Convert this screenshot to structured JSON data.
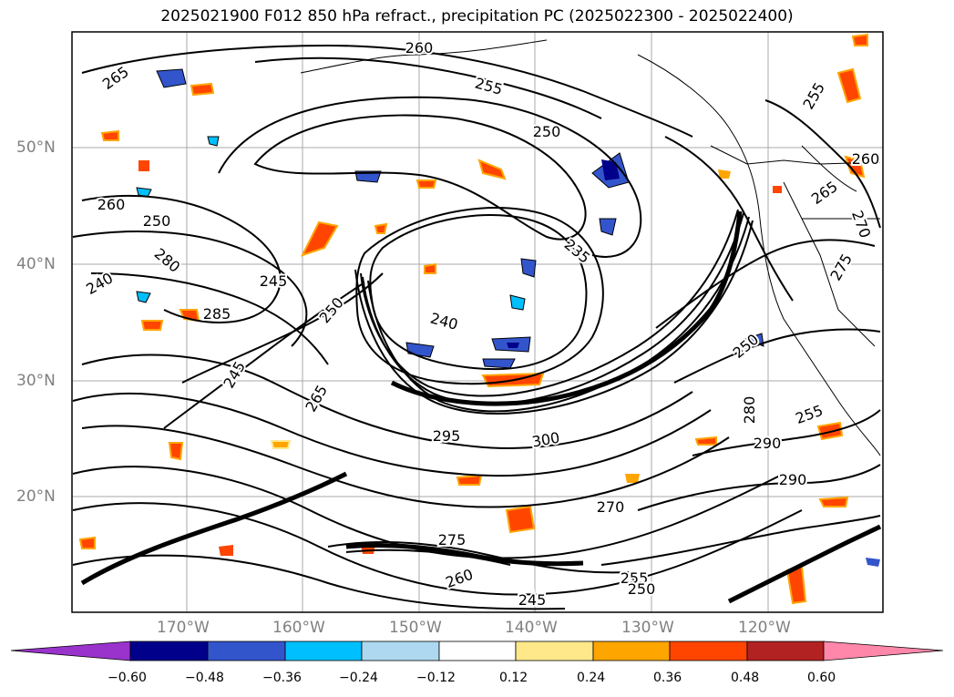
{
  "title": "2025021900 F012 850 hPa refract., precipitation PC (2025022300 - 2025022400)",
  "map": {
    "region": "North-east Pacific Ocean and western North America",
    "lat_labels": [
      "50°N",
      "40°N",
      "30°N",
      "20°N"
    ],
    "lon_labels": [
      "170°W",
      "160°W",
      "150°W",
      "140°W",
      "130°W",
      "120°W"
    ],
    "contour_labels": [
      "265",
      "260",
      "255",
      "250",
      "255",
      "260",
      "265",
      "270",
      "275",
      "260",
      "250",
      "280",
      "240",
      "245",
      "285",
      "250",
      "240",
      "235",
      "245",
      "265",
      "250",
      "280",
      "290",
      "255",
      "290",
      "295",
      "300",
      "270",
      "275",
      "260",
      "255",
      "245",
      "250"
    ]
  },
  "colorbar": {
    "ticks": [
      "−0.60",
      "−0.48",
      "−0.36",
      "−0.24",
      "−0.12",
      "0.12",
      "0.24",
      "0.36",
      "0.48",
      "0.60"
    ],
    "colors": [
      "#9933cc",
      "#00008b",
      "#3355cc",
      "#00bfff",
      "#add8f0",
      "#ffffff",
      "#ffe88a",
      "#ffa500",
      "#ff4500",
      "#b22222",
      "#ff88aa"
    ]
  }
}
